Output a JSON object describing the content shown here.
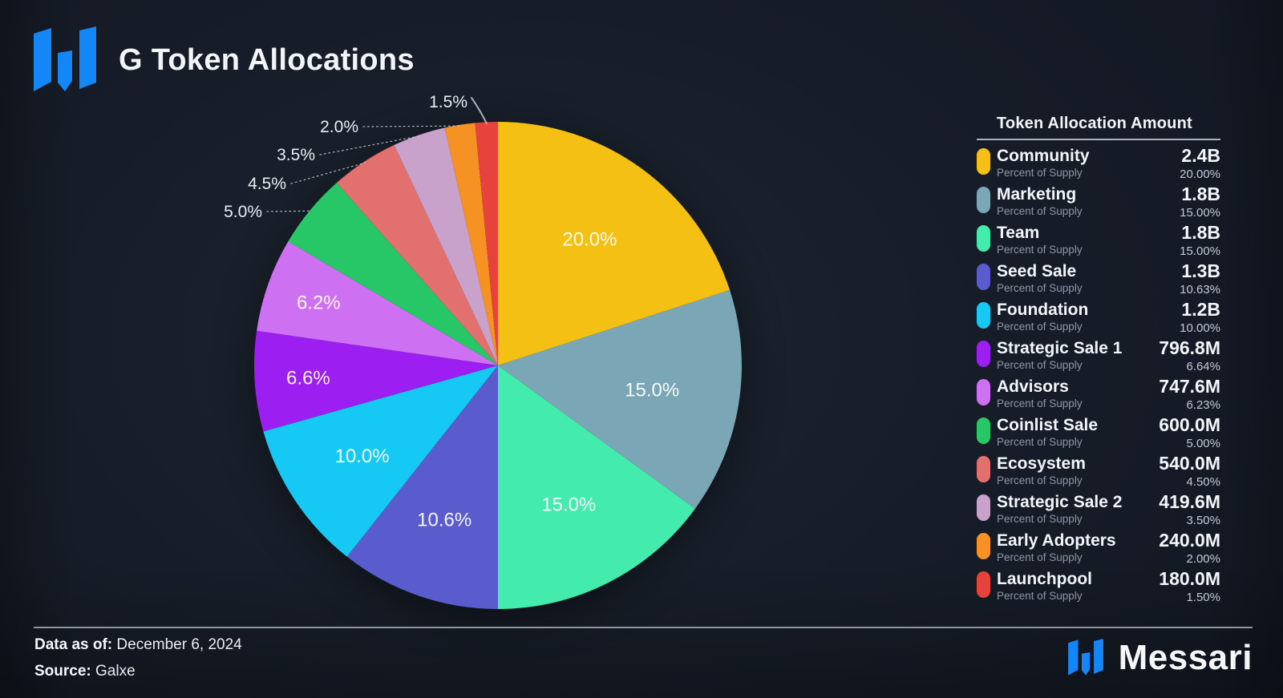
{
  "header": {
    "title": "G Token Allocations"
  },
  "legend": {
    "title": "Token Allocation Amount",
    "row_subtitle": "Percent of Supply"
  },
  "footer": {
    "data_as_of_label": "Data as of:",
    "data_as_of_value": "December 6, 2024",
    "source_label": "Source:",
    "source_value": "Galxe"
  },
  "brand": {
    "wordmark": "Messari"
  },
  "colors": {
    "brand_blue": "#1487f8",
    "background": "#171d28"
  },
  "chart_data": {
    "type": "pie",
    "title": "G Token Allocations",
    "start_angle_deg": 0,
    "direction": "clockwise",
    "legend_position": "right",
    "series": [
      {
        "name": "Community",
        "amount": "2.4B",
        "percent": 20.0,
        "slice_label": "20.0%",
        "legend_percent": "20.00%",
        "color": "#F3C013"
      },
      {
        "name": "Marketing",
        "amount": "1.8B",
        "percent": 15.0,
        "slice_label": "15.0%",
        "legend_percent": "15.00%",
        "color": "#7BA6B5"
      },
      {
        "name": "Team",
        "amount": "1.8B",
        "percent": 15.0,
        "slice_label": "15.0%",
        "legend_percent": "15.00%",
        "color": "#43ECAC"
      },
      {
        "name": "Seed Sale",
        "amount": "1.3B",
        "percent": 10.63,
        "slice_label": "10.6%",
        "legend_percent": "10.63%",
        "color": "#5A5CCD"
      },
      {
        "name": "Foundation",
        "amount": "1.2B",
        "percent": 10.0,
        "slice_label": "10.0%",
        "legend_percent": "10.00%",
        "color": "#15C9F4"
      },
      {
        "name": "Strategic Sale 1",
        "amount": "796.8M",
        "percent": 6.64,
        "slice_label": "6.6%",
        "legend_percent": "6.64%",
        "color": "#9C1EF1"
      },
      {
        "name": "Advisors",
        "amount": "747.6M",
        "percent": 6.23,
        "slice_label": "6.2%",
        "legend_percent": "6.23%",
        "color": "#CD70F2"
      },
      {
        "name": "Coinlist Sale",
        "amount": "600.0M",
        "percent": 5.0,
        "slice_label": "5.0%",
        "legend_percent": "5.00%",
        "color": "#27C667"
      },
      {
        "name": "Ecosystem",
        "amount": "540.0M",
        "percent": 4.5,
        "slice_label": "4.5%",
        "legend_percent": "4.50%",
        "color": "#E2706E"
      },
      {
        "name": "Strategic Sale 2",
        "amount": "419.6M",
        "percent": 3.5,
        "slice_label": "3.5%",
        "legend_percent": "3.50%",
        "color": "#C8A2CB"
      },
      {
        "name": "Early Adopters",
        "amount": "240.0M",
        "percent": 2.0,
        "slice_label": "2.0%",
        "legend_percent": "2.00%",
        "color": "#F69123"
      },
      {
        "name": "Launchpool",
        "amount": "180.0M",
        "percent": 1.5,
        "slice_label": "1.5%",
        "legend_percent": "1.50%",
        "color": "#E6433D"
      }
    ]
  }
}
